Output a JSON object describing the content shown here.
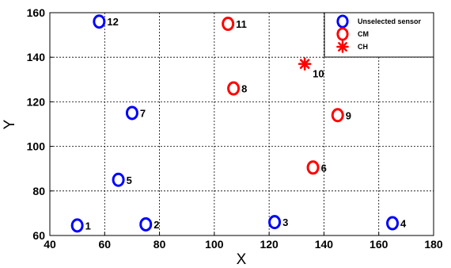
{
  "chart_data": {
    "type": "scatter",
    "title": "",
    "xlabel": "X",
    "ylabel": "Y",
    "xlim": [
      40,
      180
    ],
    "ylim": [
      60,
      160
    ],
    "xticks": [
      40,
      60,
      80,
      100,
      120,
      140,
      160,
      180
    ],
    "yticks": [
      60,
      80,
      100,
      120,
      140,
      160
    ],
    "grid": true,
    "legend_position": "top-right",
    "series": [
      {
        "name": "Unselected sensor",
        "marker": "circle",
        "color": "#0000ff",
        "points": [
          {
            "x": 50,
            "y": 64.5,
            "label": "1"
          },
          {
            "x": 75,
            "y": 65,
            "label": "2"
          },
          {
            "x": 122,
            "y": 66,
            "label": "3"
          },
          {
            "x": 165,
            "y": 65.5,
            "label": "4"
          },
          {
            "x": 65,
            "y": 85,
            "label": "5"
          },
          {
            "x": 70,
            "y": 115,
            "label": "7"
          },
          {
            "x": 58,
            "y": 156,
            "label": "12"
          }
        ]
      },
      {
        "name": "CM",
        "marker": "circle",
        "color": "#ff0000",
        "points": [
          {
            "x": 136,
            "y": 90.5,
            "label": "6"
          },
          {
            "x": 107,
            "y": 126,
            "label": "8"
          },
          {
            "x": 145,
            "y": 114,
            "label": "9"
          },
          {
            "x": 105,
            "y": 155,
            "label": "11"
          }
        ]
      },
      {
        "name": "CH",
        "marker": "asterisk",
        "color": "#ff0000",
        "points": [
          {
            "x": 133,
            "y": 137,
            "label": "10"
          }
        ]
      }
    ]
  }
}
